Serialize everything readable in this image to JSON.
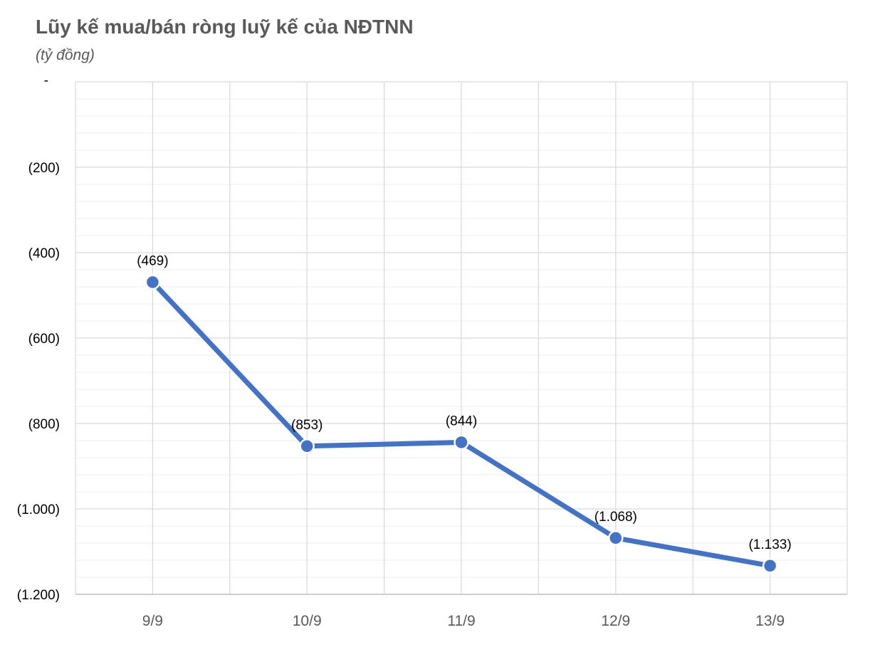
{
  "chart_data": {
    "type": "line",
    "title": "Lũy kế mua/bán ròng luỹ kế của NĐTNN",
    "subtitle": "(tỷ đồng)",
    "categories": [
      "9/9",
      "10/9",
      "11/9",
      "12/9",
      "13/9"
    ],
    "series": [
      {
        "values": [
          -469,
          -853,
          -844,
          -1068,
          -1133
        ],
        "data_labels": [
          "(469)",
          "(853)",
          "(844)",
          "(1.068)",
          "(1.133)"
        ],
        "color": "#4472C4"
      }
    ],
    "y_ticks": [
      0,
      -200,
      -400,
      -600,
      -800,
      -1000,
      -1200
    ],
    "y_tick_labels": [
      "-",
      "(200)",
      "(400)",
      "(600)",
      "(800)",
      "(1.000)",
      "(1.200)"
    ],
    "ylim": [
      -1200,
      0
    ],
    "grid": true,
    "legend": "none"
  }
}
